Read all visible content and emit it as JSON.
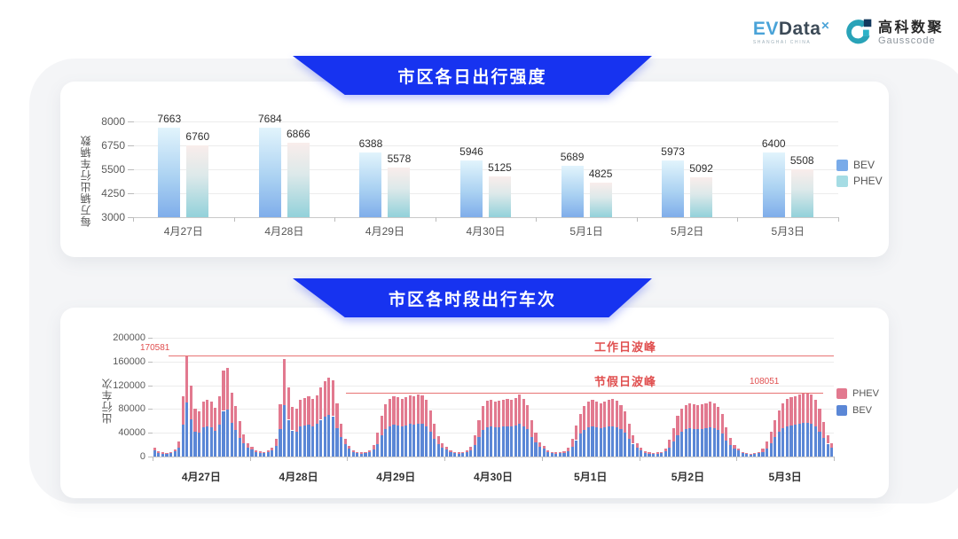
{
  "header": {
    "logo_ev": "EV",
    "logo_data": "Data",
    "logo_sup": "✕",
    "logo_sub": "SHANGHAI CHINA",
    "partner_cn": "高科数聚",
    "partner_en": "Gausscode"
  },
  "colors": {
    "banner_blue": "#1733f0",
    "accent_red": "#e04f4f",
    "bev_blue": "#5b87d6",
    "phev_pink": "#e2798f",
    "panel_bg": "#f4f5f7"
  },
  "chart_data": [
    {
      "type": "bar",
      "title": "市区各日出行强度",
      "ylabel": "每万辆出行车辆数",
      "ylim": [
        3000,
        8000
      ],
      "yticks": [
        8000,
        6750,
        5500,
        4250,
        3000
      ],
      "grid": true,
      "legend_position": "right",
      "categories": [
        "4月27日",
        "4月28日",
        "4月29日",
        "4月30日",
        "5月1日",
        "5月2日",
        "5月3日"
      ],
      "series": [
        {
          "name": "BEV",
          "values": [
            7663,
            7684,
            6388,
            5946,
            5689,
            5973,
            6400
          ]
        },
        {
          "name": "PHEV",
          "values": [
            6760,
            6866,
            5578,
            5125,
            4825,
            5092,
            5508
          ]
        }
      ],
      "legend": [
        {
          "label": "BEV",
          "color": "#79abe9"
        },
        {
          "label": "PHEV",
          "color": "#a5dce4"
        }
      ]
    },
    {
      "type": "bar",
      "stacked": true,
      "title": "市区各时段出行车次",
      "ylabel": "出行车次",
      "ylim": [
        0,
        200000
      ],
      "yticks": [
        200000,
        160000,
        120000,
        80000,
        40000,
        0
      ],
      "grid": true,
      "legend_position": "right",
      "categories": [
        "4月27日",
        "4月28日",
        "4月29日",
        "4月30日",
        "5月1日",
        "5月2日",
        "5月3日"
      ],
      "hours_per_day": 24,
      "series": [
        {
          "name": "BEV",
          "color": "#5b87d6",
          "days": [
            [
              10800,
              6500,
              5000,
              4300,
              5800,
              8600,
              15600,
              53500,
              90400,
              63100,
              42400,
              40300,
              49300,
              50900,
              49300,
              43500,
              53500,
              76900,
              79000,
              57200,
              45100,
              31800,
              22800,
              15400
            ],
            [
              11500,
              7900,
              6500,
              5800,
              7200,
              10800,
              18000,
              46600,
              86900,
              62000,
              44000,
              42400,
              50400,
              52500,
              53500,
              51400,
              54600,
              62000,
              67300,
              70500,
              67800,
              47700,
              33000,
              21000
            ],
            [
              13000,
              7900,
              5800,
              5000,
              5800,
              7900,
              11400,
              21200,
              36000,
              46600,
              51400,
              54100,
              53000,
              51400,
              53000,
              54600,
              54100,
              55700,
              54600,
              50400,
              41300,
              29200,
              21000,
              15400
            ],
            [
              11500,
              7200,
              5800,
              5000,
              5800,
              7200,
              10200,
              19100,
              32900,
              45100,
              49800,
              50900,
              48800,
              49800,
              50900,
              51400,
              50400,
              51900,
              55100,
              51400,
              45600,
              32900,
              24000,
              16800
            ],
            [
              13000,
              7200,
              5800,
              5000,
              5800,
              6500,
              9000,
              15900,
              27600,
              38200,
              45100,
              48800,
              50400,
              49300,
              47700,
              48800,
              50400,
              51400,
              49800,
              46100,
              40300,
              29700,
              21600,
              15400
            ],
            [
              10800,
              6500,
              5000,
              4300,
              5000,
              5800,
              8400,
              14800,
              25400,
              36000,
              42400,
              45600,
              47200,
              46600,
              46100,
              46600,
              47700,
              48800,
              47700,
              44500,
              38200,
              26500,
              19200,
              14000
            ],
            [
              10100,
              5800,
              4300,
              3600,
              4300,
              5800,
              7800,
              13300,
              22300,
              32900,
              41300,
              47700,
              51400,
              53000,
              54100,
              55100,
              56200,
              57300,
              55100,
              50400,
              42400,
              30700,
              21600,
              15400
            ]
          ]
        },
        {
          "name": "PHEV",
          "color": "#e2798f",
          "days": [
            [
              4200,
              2500,
              2000,
              1700,
              2200,
              3400,
              10400,
              47500,
              80181,
              55900,
              37600,
              35700,
              43700,
              45100,
              43700,
              38500,
              47500,
              68100,
              70000,
              50800,
              39900,
              28200,
              15200,
              6600
            ],
            [
              4500,
              3100,
              2500,
              2200,
              2800,
              4200,
              12000,
              41400,
              77100,
              55000,
              39000,
              37600,
              44600,
              46500,
              47500,
              45600,
              48400,
              55000,
              59700,
              62500,
              60200,
              42300,
              22000,
              9000
            ],
            [
              5000,
              3100,
              2200,
              2000,
              2200,
              3100,
              7600,
              18800,
              32000,
              41400,
              45600,
              47900,
              47000,
              45600,
              47000,
              48400,
              47900,
              49300,
              48400,
              44600,
              36700,
              25800,
              14000,
              6600
            ],
            [
              4500,
              2800,
              2200,
              2000,
              2200,
              2800,
              6800,
              16900,
              29100,
              39900,
              44200,
              45100,
              43200,
              44200,
              45100,
              45600,
              44600,
              46100,
              48900,
              45600,
              40400,
              29100,
              16000,
              7200
            ],
            [
              5000,
              2800,
              2200,
              2000,
              2200,
              2500,
              6000,
              14100,
              24400,
              33800,
              39900,
              43200,
              44600,
              43700,
              42300,
              43200,
              44600,
              45600,
              44200,
              40900,
              35700,
              26300,
              14400,
              6600
            ],
            [
              4200,
              2500,
              2000,
              1700,
              2000,
              2200,
              5600,
              13200,
              22600,
              32000,
              37600,
              40400,
              41800,
              41400,
              40900,
              41400,
              42300,
              43200,
              42300,
              39500,
              33800,
              23500,
              12800,
              6000
            ],
            [
              3900,
              2200,
              1700,
              1400,
              1700,
              2200,
              5200,
              11700,
              19700,
              29100,
              36700,
              42300,
              45600,
              47000,
              47900,
              48900,
              49800,
              50751,
              48900,
              44600,
              37600,
              27300,
              14400,
              6600
            ]
          ]
        }
      ],
      "legend": [
        {
          "label": "PHEV",
          "color": "#e2798f"
        },
        {
          "label": "BEV",
          "color": "#5b87d6"
        }
      ],
      "ref_lines": [
        {
          "name": "工作日波峰",
          "value": 170581,
          "value_label": "170581"
        },
        {
          "name": "节假日波峰",
          "value": 108051,
          "value_label": "108051"
        }
      ]
    }
  ]
}
